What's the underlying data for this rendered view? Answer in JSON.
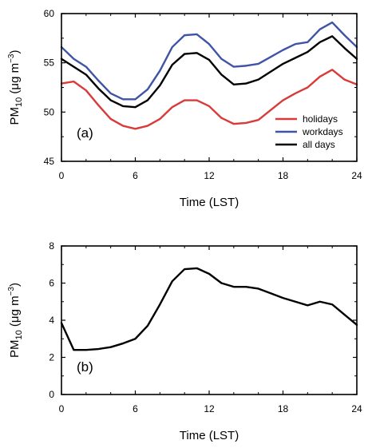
{
  "chart_data": [
    {
      "panel": "(a)",
      "type": "line",
      "xlabel": "Time (LST)",
      "ylabel": {
        "base": "PM",
        "sub": "10",
        "unit_open": " (μg m",
        "unit_sup": "−3",
        "unit_close": ")"
      },
      "xlim": [
        0,
        24
      ],
      "ylim": [
        45,
        60
      ],
      "xticks": [
        0,
        6,
        12,
        18,
        24
      ],
      "yticks": [
        45,
        50,
        55,
        60
      ],
      "grid": false,
      "legend_position": "bottom-right",
      "x": [
        0,
        1,
        2,
        3,
        4,
        5,
        6,
        7,
        8,
        9,
        10,
        11,
        12,
        13,
        14,
        15,
        16,
        17,
        18,
        19,
        20,
        21,
        22,
        23,
        24
      ],
      "series": [
        {
          "name": "holidays",
          "color": "#d93a3a",
          "values": [
            52.9,
            53.1,
            52.2,
            50.7,
            49.3,
            48.6,
            48.3,
            48.6,
            49.3,
            50.5,
            51.2,
            51.2,
            50.6,
            49.4,
            48.8,
            48.9,
            49.2,
            50.2,
            51.2,
            51.9,
            52.5,
            53.6,
            54.3,
            53.3,
            52.8
          ]
        },
        {
          "name": "workdays",
          "color": "#3f54a6",
          "values": [
            56.6,
            55.4,
            54.6,
            53.2,
            51.9,
            51.3,
            51.3,
            52.3,
            54.2,
            56.6,
            57.8,
            57.9,
            56.9,
            55.4,
            54.6,
            54.7,
            54.9,
            55.6,
            56.3,
            56.9,
            57.1,
            58.4,
            59.1,
            57.8,
            56.6
          ]
        },
        {
          "name": "all days",
          "color": "#000000",
          "values": [
            55.4,
            54.6,
            53.8,
            52.4,
            51.2,
            50.6,
            50.5,
            51.2,
            52.7,
            54.8,
            55.9,
            56.0,
            55.3,
            53.8,
            52.8,
            52.9,
            53.3,
            54.1,
            54.9,
            55.5,
            56.1,
            57.1,
            57.7,
            56.5,
            55.4
          ]
        }
      ]
    },
    {
      "panel": "(b)",
      "type": "line",
      "xlabel": "Time (LST)",
      "ylabel": {
        "base": "PM",
        "sub": "10",
        "unit_open": " (μg m",
        "unit_sup": "−3",
        "unit_close": ")"
      },
      "xlim": [
        0,
        24
      ],
      "ylim": [
        0,
        8
      ],
      "xticks": [
        0,
        6,
        12,
        18,
        24
      ],
      "yticks": [
        0,
        2,
        4,
        6,
        8
      ],
      "grid": false,
      "x": [
        0,
        1,
        2,
        3,
        4,
        5,
        6,
        7,
        8,
        9,
        10,
        11,
        12,
        13,
        14,
        15,
        16,
        17,
        18,
        19,
        20,
        21,
        22,
        23,
        24
      ],
      "series": [
        {
          "color": "#000000",
          "values": [
            3.85,
            2.4,
            2.4,
            2.45,
            2.55,
            2.75,
            3.0,
            3.7,
            4.85,
            6.1,
            6.75,
            6.8,
            6.5,
            6.0,
            5.8,
            5.8,
            5.7,
            5.45,
            5.2,
            5.0,
            4.8,
            5.0,
            4.85,
            4.3,
            3.75
          ]
        }
      ]
    }
  ]
}
